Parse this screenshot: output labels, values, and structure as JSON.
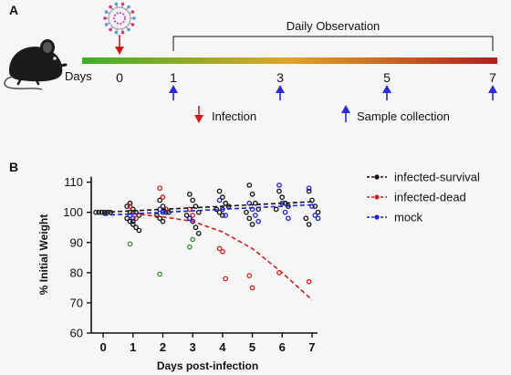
{
  "panel_a": {
    "label": "A",
    "days_label": "Days",
    "observation_label": "Daily Observation",
    "timeline_days": [
      "0",
      "1",
      "3",
      "5",
      "7"
    ],
    "legend_infection": "Infection",
    "legend_sample": "Sample collection",
    "colors": {
      "infection_arrow": "#c81e1e",
      "sample_arrow": "#2a2ad6",
      "bar_start": "#3fae2a",
      "bar_mid": "#e0a52a",
      "bar_end": "#b01e1e"
    },
    "icons": [
      "mouse-icon",
      "virus-icon",
      "infection-arrow-icon",
      "sample-arrow-icon"
    ]
  },
  "panel_b": {
    "label": "B",
    "chart_data": {
      "type": "scatter",
      "xlabel": "Days post-infection",
      "ylabel": "% Initial Weight",
      "xlim": [
        -0.4,
        7.4
      ],
      "ylim": [
        60,
        112
      ],
      "x_ticks": [
        "0",
        "1",
        "2",
        "3",
        "4",
        "5",
        "6",
        "7"
      ],
      "y_ticks": [
        "60",
        "70",
        "80",
        "90",
        "100",
        "110"
      ],
      "legend_position": "top-right",
      "series": [
        {
          "name": "infected-survival",
          "color": "#111111",
          "trend": [
            [
              0,
              100
            ],
            [
              7,
              103.5
            ]
          ],
          "points": [
            [
              0,
              100
            ],
            [
              0,
              100
            ],
            [
              0,
              100
            ],
            [
              0,
              100
            ],
            [
              0,
              100
            ],
            [
              0,
              100
            ],
            [
              1,
              103
            ],
            [
              1,
              101
            ],
            [
              1,
              100
            ],
            [
              1,
              99
            ],
            [
              1,
              98
            ],
            [
              1,
              97
            ],
            [
              1,
              96
            ],
            [
              1,
              95
            ],
            [
              1,
              94
            ],
            [
              1,
              102
            ],
            [
              1,
              100
            ],
            [
              1,
              97
            ],
            [
              2,
              104
            ],
            [
              2,
              102
            ],
            [
              2,
              101
            ],
            [
              2,
              100
            ],
            [
              2,
              99
            ],
            [
              2,
              98
            ],
            [
              2,
              97
            ],
            [
              2,
              100
            ],
            [
              3,
              106
            ],
            [
              3,
              104
            ],
            [
              3,
              102
            ],
            [
              3,
              100
            ],
            [
              3,
              99
            ],
            [
              3,
              98
            ],
            [
              3,
              97
            ],
            [
              3,
              95
            ],
            [
              3,
              93
            ],
            [
              4,
              107
            ],
            [
              4,
              105
            ],
            [
              4,
              103
            ],
            [
              4,
              102
            ],
            [
              4,
              101
            ],
            [
              4,
              100
            ],
            [
              4,
              99
            ],
            [
              5,
              109
            ],
            [
              5,
              106
            ],
            [
              5,
              103
            ],
            [
              5,
              101
            ],
            [
              5,
              100
            ],
            [
              5,
              98
            ],
            [
              5,
              96
            ],
            [
              6,
              107
            ],
            [
              6,
              105
            ],
            [
              6,
              103
            ],
            [
              6,
              102
            ],
            [
              6,
              101
            ],
            [
              7,
              107
            ],
            [
              7,
              104
            ],
            [
              7,
              102
            ],
            [
              7,
              100
            ],
            [
              7,
              98
            ],
            [
              7,
              96
            ]
          ]
        },
        {
          "name": "infected-dead",
          "color": "#cc2222",
          "trend": [
            [
              1,
              99.5
            ],
            [
              2,
              98.5
            ],
            [
              3,
              97
            ],
            [
              4,
              93.5
            ],
            [
              5,
              88
            ],
            [
              6,
              80
            ],
            [
              7,
              71
            ]
          ],
          "points": [
            [
              1,
              102
            ],
            [
              1,
              100
            ],
            [
              1,
              98
            ],
            [
              2,
              108
            ],
            [
              2,
              105
            ],
            [
              2,
              101
            ],
            [
              3,
              101
            ],
            [
              3,
              99
            ],
            [
              4,
              88
            ],
            [
              4,
              87
            ],
            [
              4,
              78
            ],
            [
              5,
              79
            ],
            [
              5,
              75
            ],
            [
              6,
              80
            ],
            [
              7,
              77
            ]
          ]
        },
        {
          "name": "mock",
          "color": "#2020cc",
          "trend": [
            [
              0,
              99
            ],
            [
              7,
              102.5
            ]
          ],
          "points": [
            [
              1,
              99
            ],
            [
              1,
              98
            ],
            [
              2,
              101
            ],
            [
              2,
              100
            ],
            [
              3,
              98
            ],
            [
              3,
              97
            ],
            [
              4,
              104
            ],
            [
              4,
              101
            ],
            [
              4,
              99
            ],
            [
              5,
              103
            ],
            [
              5,
              101
            ],
            [
              5,
              99
            ],
            [
              5,
              97
            ],
            [
              6,
              109
            ],
            [
              6,
              103
            ],
            [
              6,
              100
            ],
            [
              6,
              98
            ],
            [
              7,
              108
            ],
            [
              7,
              102
            ],
            [
              7,
              99
            ],
            [
              7,
              98
            ]
          ]
        },
        {
          "name": "",
          "color": "#3a8a3a",
          "legend": false,
          "points": [
            [
              1,
              89.5
            ],
            [
              2,
              79.5
            ],
            [
              3,
              88.5
            ],
            [
              3,
              91
            ]
          ]
        }
      ]
    }
  }
}
